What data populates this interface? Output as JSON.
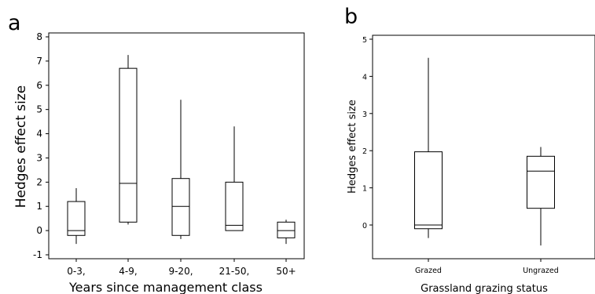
{
  "chart_data": [
    {
      "panel": "a",
      "type": "box",
      "title": "",
      "xlabel": "Years since management class",
      "ylabel": "Hedges effect size",
      "ylim": [
        -1,
        8
      ],
      "yticks": [
        -1,
        0,
        1,
        2,
        3,
        4,
        5,
        6,
        7,
        8
      ],
      "grid": false,
      "categories": [
        "0-3,",
        "4-9,",
        "9-20,",
        "21-50,",
        "50+"
      ],
      "boxes": [
        {
          "category": "0-3,",
          "whisker_low": -0.55,
          "q1": -0.2,
          "median": 0.0,
          "q3": 1.2,
          "whisker_high": 1.75
        },
        {
          "category": "4-9,",
          "whisker_low": 0.25,
          "q1": 0.35,
          "median": 1.95,
          "q3": 6.7,
          "whisker_high": 7.25
        },
        {
          "category": "9-20,",
          "whisker_low": -0.35,
          "q1": -0.2,
          "median": 1.0,
          "q3": 2.15,
          "whisker_high": 5.4
        },
        {
          "category": "21-50,",
          "whisker_low": 0.0,
          "q1": 0.0,
          "median": 0.22,
          "q3": 2.0,
          "whisker_high": 4.3
        },
        {
          "category": "50+",
          "whisker_low": -0.55,
          "q1": -0.3,
          "median": 0.0,
          "q3": 0.35,
          "whisker_high": 0.45
        }
      ]
    },
    {
      "panel": "b",
      "type": "box",
      "title": "",
      "xlabel": "Grassland grazing status",
      "ylabel": "Hedges effect size",
      "ylim": [
        -0.85,
        5.05
      ],
      "yticks": [
        0,
        1,
        2,
        3,
        4,
        5
      ],
      "grid": false,
      "categories": [
        "Grazed",
        "Ungrazed"
      ],
      "boxes": [
        {
          "category": "Grazed",
          "whisker_low": -0.35,
          "q1": -0.1,
          "median": 0.0,
          "q3": 1.97,
          "whisker_high": 4.5
        },
        {
          "category": "Ungrazed",
          "whisker_low": -0.55,
          "q1": 0.45,
          "median": 1.45,
          "q3": 1.85,
          "whisker_high": 2.1
        }
      ]
    }
  ],
  "colors": {
    "box_stroke": "#000000",
    "box_fill": "#ffffff",
    "frame": "#000000",
    "background": "#ffffff"
  }
}
